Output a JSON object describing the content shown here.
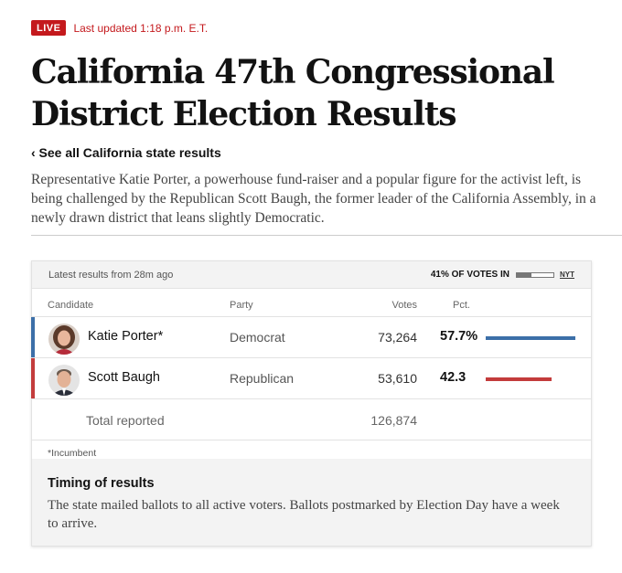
{
  "header": {
    "live_label": "LIVE",
    "updated_text": "Last updated 1:18 p.m. E.T."
  },
  "headline": "California 47th Congressional District Election Results",
  "back_link": "‹ See all California state results",
  "summary": "Representative Katie Porter, a powerhouse fund-raiser and a popular figure for the activist left, is being challenged by the Republican Scott Baugh, the former leader of the California Assembly, in a newly drawn district that leans slightly Democratic.",
  "results": {
    "latest": "Latest results from 28m ago",
    "votes_in": {
      "label": "41% OF VOTES IN",
      "fraction": 0.41,
      "source": "NYT"
    },
    "columns": {
      "candidate": "Candidate",
      "party": "Party",
      "votes": "Votes",
      "pct": "Pct."
    },
    "candidates": [
      {
        "name": "Katie Porter*",
        "party": "Democrat",
        "votes": "73,264",
        "pct": "57.7%",
        "share": 0.577,
        "color": "#3c6fa8"
      },
      {
        "name": "Scott Baugh",
        "party": "Republican",
        "votes": "53,610",
        "pct": "42.3",
        "share": 0.423,
        "color": "#c33c3c"
      }
    ],
    "total_label": "Total reported",
    "total_votes": "126,874",
    "footnote": "*Incumbent"
  },
  "timing": {
    "title": "Timing of results",
    "text": "The state mailed ballots to all active voters. Ballots postmarked by Election Day have a week to arrive."
  }
}
